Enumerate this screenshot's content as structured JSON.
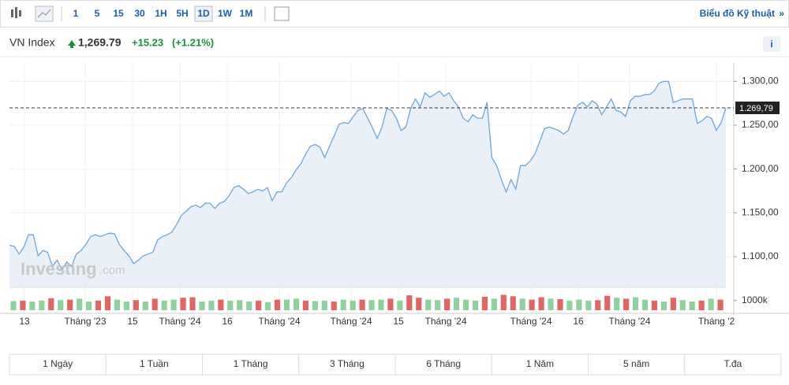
{
  "toolbar": {
    "intervals": [
      "1",
      "5",
      "15",
      "30",
      "1H",
      "5H",
      "1D",
      "1W",
      "1M"
    ],
    "selected": "1D",
    "link": "Biểu đồ Kỹ thuật",
    "link_arrow": "»"
  },
  "header": {
    "name": "VN Index",
    "price": "1,269.79",
    "change": "+15.23",
    "change_pct": "(+1.21%)",
    "info": "i"
  },
  "watermark": {
    "brand": "Investing",
    "suffix": ".com"
  },
  "chart_data": {
    "type": "area",
    "color": "#6ea6d6",
    "fill": "#e9f0f8",
    "values": [
      1113,
      1112,
      1103,
      1111,
      1125,
      1125,
      1101,
      1107,
      1105,
      1089,
      1096,
      1085,
      1094,
      1089,
      1103,
      1107,
      1114,
      1123,
      1125,
      1123,
      1125,
      1127,
      1126,
      1114,
      1107,
      1101,
      1092,
      1096,
      1101,
      1103,
      1105,
      1119,
      1123,
      1125,
      1128,
      1137,
      1147,
      1152,
      1157,
      1159,
      1156,
      1161,
      1161,
      1155,
      1161,
      1163,
      1170,
      1179,
      1181,
      1177,
      1172,
      1174,
      1177,
      1175,
      1179,
      1164,
      1174,
      1174,
      1184,
      1190,
      1199,
      1206,
      1217,
      1226,
      1228,
      1225,
      1213,
      1226,
      1238,
      1251,
      1253,
      1252,
      1260,
      1267,
      1269,
      1258,
      1247,
      1235,
      1248,
      1269,
      1267,
      1258,
      1244,
      1248,
      1269,
      1280,
      1271,
      1287,
      1282,
      1285,
      1289,
      1283,
      1287,
      1278,
      1271,
      1258,
      1254,
      1262,
      1258,
      1258,
      1276,
      1213,
      1204,
      1188,
      1174,
      1188,
      1177,
      1204,
      1204,
      1209,
      1217,
      1231,
      1246,
      1248,
      1246,
      1244,
      1240,
      1244,
      1260,
      1273,
      1276,
      1271,
      1278,
      1274,
      1262,
      1271,
      1280,
      1267,
      1265,
      1260,
      1278,
      1283,
      1283,
      1285,
      1285,
      1289,
      1298,
      1300,
      1300,
      1276,
      1278,
      1280,
      1280,
      1280,
      1252,
      1255,
      1260,
      1258,
      1244,
      1253,
      1269.79
    ],
    "ylim": [
      1065,
      1321
    ],
    "yticks": [
      {
        "value": 1100,
        "label": "1.100,00"
      },
      {
        "value": 1150,
        "label": "1.150,00"
      },
      {
        "value": 1200,
        "label": "1.200,00"
      },
      {
        "value": 1250,
        "label": "1.250,00"
      },
      {
        "value": 1300,
        "label": "1.300,00"
      }
    ],
    "last": {
      "value": 1269.79,
      "label": "1.269,79"
    },
    "x_labels": [
      "13",
      "Tháng '23",
      "15",
      "Tháng '24",
      "16",
      "Tháng '24",
      "Tháng '24",
      "15",
      "Tháng '24",
      "Tháng '24",
      "16",
      "Tháng '24",
      "Tháng '2"
    ],
    "volume": {
      "values": [
        950,
        1000,
        900,
        1000,
        1250,
        1050,
        1100,
        1200,
        900,
        1000,
        1450,
        1100,
        900,
        1050,
        900,
        1200,
        1000,
        1100,
        1300,
        1350,
        900,
        1000,
        1100,
        1000,
        1050,
        900,
        1000,
        850,
        1100,
        1100,
        1200,
        1000,
        950,
        1000,
        900,
        1100,
        1000,
        1100,
        1050,
        1100,
        1200,
        1000,
        1550,
        1300,
        1100,
        1050,
        1200,
        1300,
        1100,
        1000,
        1400,
        1200,
        1600,
        1450,
        1200,
        1100,
        1350,
        1200,
        1150,
        1000,
        1100,
        1000,
        1050,
        1500,
        1300,
        1200,
        1350,
        1100,
        1000,
        900,
        1300,
        1050,
        900,
        1000,
        1200,
        1100
      ],
      "up": [
        true,
        false,
        true,
        true,
        false,
        true,
        false,
        true,
        true,
        false,
        false,
        true,
        true,
        false,
        true,
        false,
        true,
        true,
        false,
        false,
        true,
        true,
        false,
        true,
        true,
        true,
        false,
        true,
        false,
        true,
        true,
        false,
        true,
        true,
        false,
        true,
        true,
        false,
        true,
        true,
        false,
        true,
        false,
        false,
        true,
        true,
        false,
        true,
        true,
        true,
        false,
        true,
        false,
        false,
        true,
        false,
        false,
        true,
        false,
        true,
        true,
        true,
        false,
        false,
        true,
        false,
        true,
        true,
        false,
        true,
        false,
        true,
        true,
        false,
        true,
        false
      ],
      "up_color": "#8fd19e",
      "down_color": "#e06666",
      "ylim": [
        0,
        1640
      ],
      "yticks": [
        {
          "value": 1000,
          "label": "1000k"
        }
      ]
    }
  },
  "periods": [
    "1 Ngày",
    "1 Tuần",
    "1 Tháng",
    "3 Tháng",
    "6 Tháng",
    "1 Năm",
    "5 năm",
    "T.đa"
  ]
}
